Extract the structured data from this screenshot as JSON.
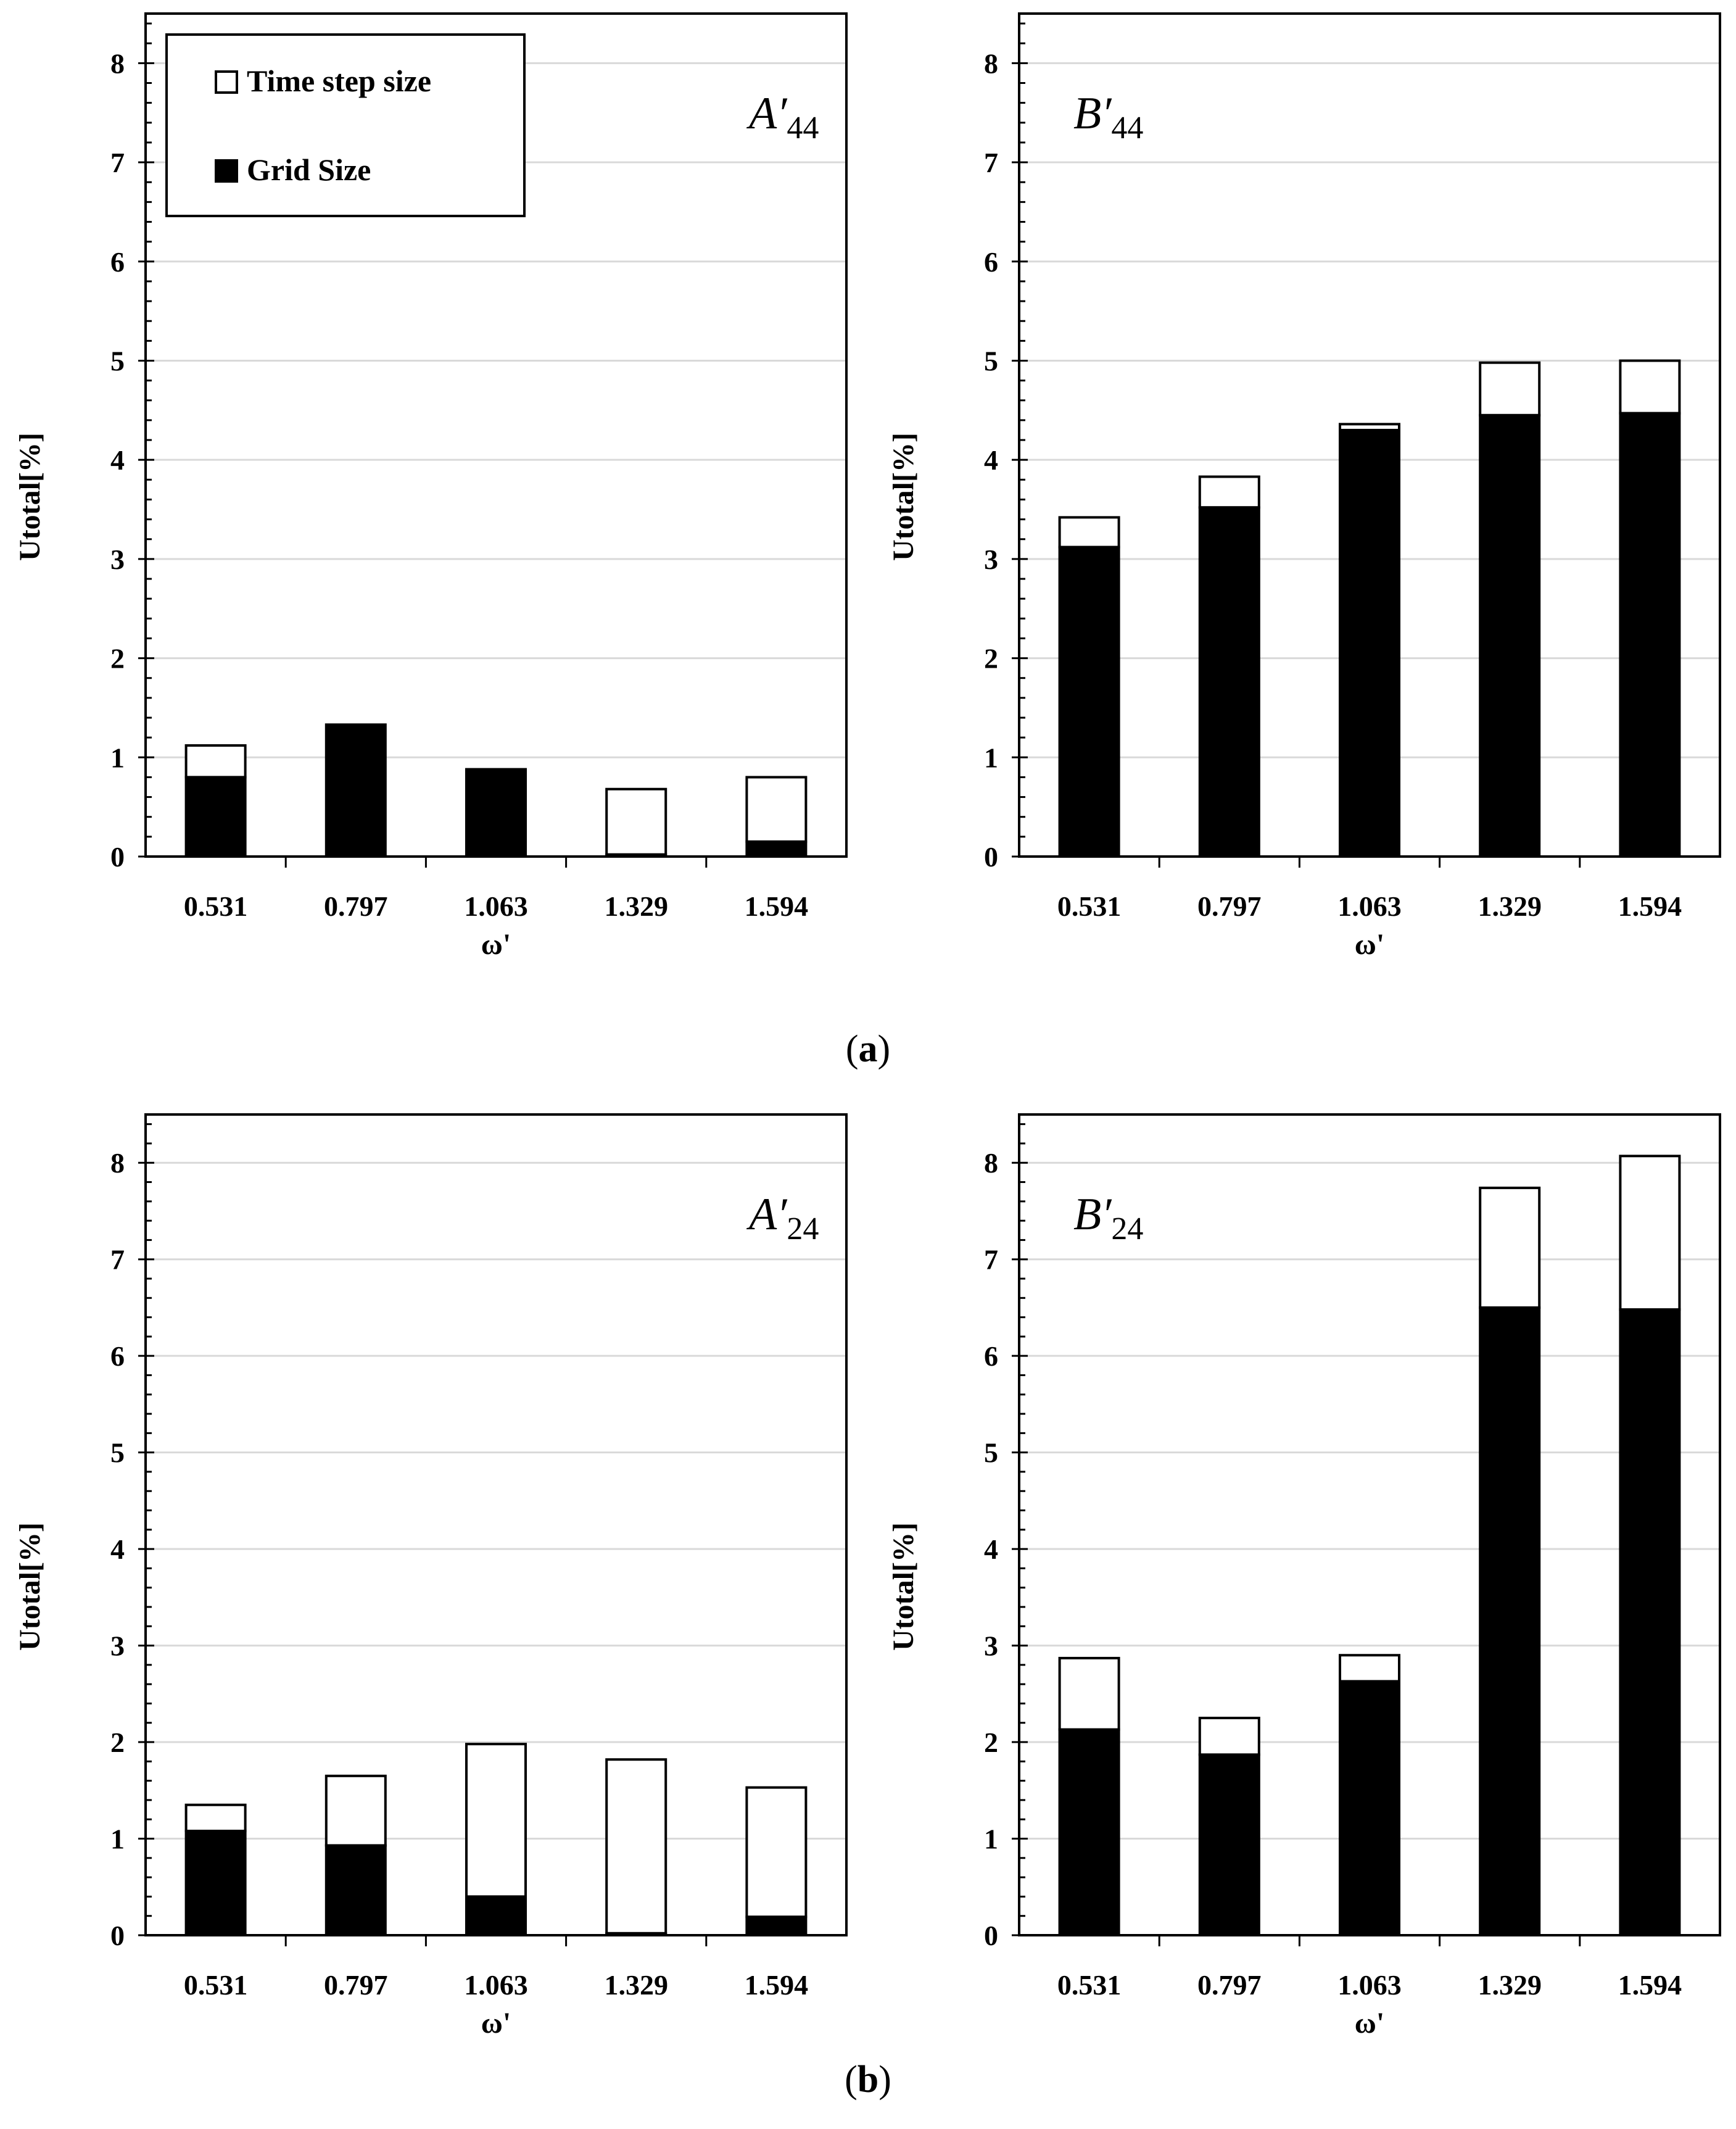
{
  "figure": {
    "legend": {
      "time_label": "Time step size",
      "grid_label": "Grid Size"
    },
    "captions": [
      {
        "open": "(",
        "letter": "a",
        "close": ")"
      },
      {
        "open": "(",
        "letter": "b",
        "close": ")"
      }
    ]
  },
  "colors": {
    "grid_fill": "#000000",
    "time_fill": "#ffffff",
    "stroke": "#000000",
    "gridline": "#d9d9d9"
  },
  "chart_data": [
    {
      "type": "bar",
      "stacked": true,
      "title_base": "A′",
      "title_sub": "44",
      "xlabel": "ω'",
      "ylabel": "Utotal[%]",
      "categories": [
        "0.531",
        "0.797",
        "1.063",
        "1.329",
        "1.594"
      ],
      "ylim": [
        0,
        8.5
      ],
      "yticks": [
        0,
        1,
        2,
        3,
        4,
        5,
        6,
        7,
        8
      ],
      "series": [
        {
          "name": "Grid Size",
          "values": [
            0.8,
            1.33,
            0.88,
            0.02,
            0.15
          ]
        },
        {
          "name": "Time step size",
          "values": [
            0.32,
            0.0,
            0.0,
            0.66,
            0.65
          ]
        }
      ],
      "legend_position": "top-left"
    },
    {
      "type": "bar",
      "stacked": true,
      "title_base": "B′",
      "title_sub": "44",
      "xlabel": "ω'",
      "ylabel": "Utotal[%]",
      "categories": [
        "0.531",
        "0.797",
        "1.063",
        "1.329",
        "1.594"
      ],
      "ylim": [
        0,
        8.5
      ],
      "yticks": [
        0,
        1,
        2,
        3,
        4,
        5,
        6,
        7,
        8
      ],
      "series": [
        {
          "name": "Grid Size",
          "values": [
            3.12,
            3.52,
            4.3,
            4.45,
            4.47
          ]
        },
        {
          "name": "Time step size",
          "values": [
            0.3,
            0.31,
            0.06,
            0.53,
            0.53
          ]
        }
      ]
    },
    {
      "type": "bar",
      "stacked": true,
      "title_base": "A′",
      "title_sub": "24",
      "xlabel": "ω'",
      "ylabel": "Utotal[%]",
      "categories": [
        "0.531",
        "0.797",
        "1.063",
        "1.329",
        "1.594"
      ],
      "ylim": [
        0,
        8.5
      ],
      "yticks": [
        0,
        1,
        2,
        3,
        4,
        5,
        6,
        7,
        8
      ],
      "series": [
        {
          "name": "Grid Size",
          "values": [
            1.08,
            0.93,
            0.4,
            0.02,
            0.19
          ]
        },
        {
          "name": "Time step size",
          "values": [
            0.27,
            0.72,
            1.58,
            1.8,
            1.34
          ]
        }
      ]
    },
    {
      "type": "bar",
      "stacked": true,
      "title_base": "B′",
      "title_sub": "24",
      "xlabel": "ω'",
      "ylabel": "Utotal[%]",
      "categories": [
        "0.531",
        "0.797",
        "1.063",
        "1.329",
        "1.594"
      ],
      "ylim": [
        0,
        8.5
      ],
      "yticks": [
        0,
        1,
        2,
        3,
        4,
        5,
        6,
        7,
        8
      ],
      "series": [
        {
          "name": "Grid Size",
          "values": [
            2.13,
            1.87,
            2.63,
            6.5,
            6.48
          ]
        },
        {
          "name": "Time step size",
          "values": [
            0.74,
            0.38,
            0.27,
            1.24,
            1.59
          ]
        }
      ]
    }
  ]
}
